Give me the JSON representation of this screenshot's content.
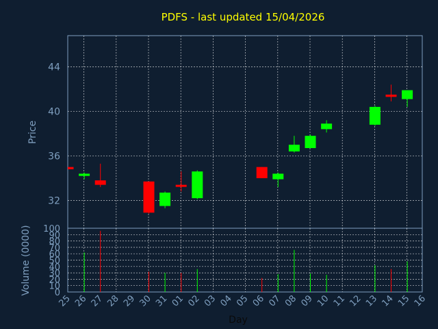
{
  "chart_data": {
    "type": "candlestick",
    "title": "PDFS - last updated 15/04/2026",
    "xlabel": "Day",
    "price_label": "Price",
    "volume_label": "Volume (0000)",
    "x_tick_labels": [
      "25",
      "26",
      "27",
      "28",
      "29",
      "30",
      "31",
      "01",
      "02",
      "03",
      "04",
      "05",
      "06",
      "07",
      "08",
      "09",
      "10",
      "11",
      "12",
      "13",
      "14",
      "15",
      "16"
    ],
    "price_ticks": [
      32,
      36,
      40,
      44
    ],
    "price_range": [
      29.5,
      46.8
    ],
    "volume_ticks": [
      0,
      10,
      20,
      30,
      40,
      50,
      60,
      70,
      80,
      90,
      100
    ],
    "volume_range": [
      0,
      100
    ],
    "colors": {
      "up": "#00ff00",
      "down": "#ff0000",
      "grid": "#ffffff",
      "axis": "#7f9fbf",
      "title": "#ffff00"
    },
    "candles": [
      {
        "day": "25",
        "open": 35.0,
        "high": 35.0,
        "low": 34.8,
        "close": 34.8,
        "volume": 0
      },
      {
        "day": "26",
        "open": 34.2,
        "high": 34.5,
        "low": 33.9,
        "close": 34.4,
        "volume": 62
      },
      {
        "day": "27",
        "open": 33.8,
        "high": 35.3,
        "low": 33.2,
        "close": 33.4,
        "volume": 96
      },
      {
        "day": "30",
        "open": 33.7,
        "high": 33.7,
        "low": 30.8,
        "close": 30.9,
        "volume": 32
      },
      {
        "day": "31",
        "open": 31.5,
        "high": 32.8,
        "low": 31.3,
        "close": 32.7,
        "volume": 30
      },
      {
        "day": "01",
        "open": 33.4,
        "high": 34.6,
        "low": 32.8,
        "close": 33.3,
        "volume": 30
      },
      {
        "day": "02",
        "open": 32.2,
        "high": 34.7,
        "low": 32.1,
        "close": 34.6,
        "volume": 36
      },
      {
        "day": "06",
        "open": 35.0,
        "high": 35.0,
        "low": 34.0,
        "close": 34.0,
        "volume": 22
      },
      {
        "day": "07",
        "open": 33.9,
        "high": 34.5,
        "low": 33.2,
        "close": 34.4,
        "volume": 28
      },
      {
        "day": "08",
        "open": 36.4,
        "high": 37.8,
        "low": 36.3,
        "close": 37.0,
        "volume": 66
      },
      {
        "day": "09",
        "open": 36.7,
        "high": 37.9,
        "low": 36.7,
        "close": 37.8,
        "volume": 29
      },
      {
        "day": "10",
        "open": 38.4,
        "high": 39.2,
        "low": 38.1,
        "close": 38.9,
        "volume": 27
      },
      {
        "day": "13",
        "open": 38.8,
        "high": 40.5,
        "low": 38.7,
        "close": 40.4,
        "volume": 42
      },
      {
        "day": "14",
        "open": 41.5,
        "high": 42.4,
        "low": 40.9,
        "close": 41.3,
        "volume": 36
      },
      {
        "day": "15",
        "open": 41.1,
        "high": 41.9,
        "low": 40.4,
        "close": 41.9,
        "volume": 48
      }
    ]
  }
}
